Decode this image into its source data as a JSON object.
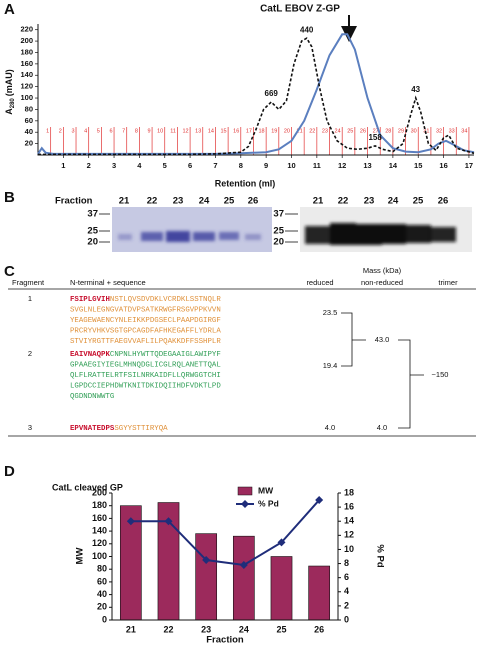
{
  "panels": [
    "A",
    "B",
    "C",
    "D"
  ],
  "chart_data": [
    {
      "type": "line",
      "title": "CatL EBOV Z-GP",
      "xlabel": "Retention (ml)",
      "ylabel": {
        "main": "A",
        "sub": "280",
        "unit": "(mAU)"
      },
      "xlim": [
        0,
        17.2
      ],
      "ylim": [
        0,
        230
      ],
      "xticks": [
        1,
        2,
        3,
        4,
        5,
        6,
        7,
        8,
        9,
        10,
        11,
        12,
        13,
        14,
        15,
        16,
        17
      ],
      "yticks": [
        20,
        40,
        60,
        80,
        100,
        120,
        140,
        160,
        180,
        200,
        220
      ],
      "series": [
        {
          "color": "#5b7fbf",
          "style": "solid",
          "x": [
            0,
            0.15,
            0.3,
            0.6,
            1,
            2,
            3,
            4,
            5,
            6,
            7,
            8,
            9,
            9.5,
            10,
            10.5,
            11,
            11.5,
            12,
            12.2,
            12.5,
            13,
            13.5,
            14,
            14.5,
            15,
            15.5,
            15.8,
            16.1,
            16.4,
            16.8,
            17.2
          ],
          "values": [
            2,
            12,
            4,
            2,
            2,
            2,
            2,
            2,
            2,
            2,
            2,
            3,
            5,
            10,
            25,
            60,
            115,
            175,
            212,
            212,
            185,
            100,
            35,
            12,
            6,
            5,
            10,
            20,
            25,
            18,
            8,
            5
          ]
        },
        {
          "color": "#111111",
          "style": "dashed",
          "x": [
            0,
            1,
            2,
            3,
            4,
            5,
            6,
            7,
            8,
            8.3,
            8.6,
            8.9,
            9.2,
            9.5,
            9.8,
            10.1,
            10.4,
            10.6,
            10.8,
            11.1,
            11.4,
            11.8,
            12.2,
            12.6,
            13,
            13.3,
            13.6,
            14,
            14.4,
            14.7,
            14.9,
            15.1,
            15.4,
            15.7,
            16,
            16.2,
            16.5,
            17.2
          ],
          "values": [
            1,
            1,
            1,
            1,
            1,
            1,
            1,
            2,
            5,
            15,
            45,
            80,
            93,
            80,
            95,
            160,
            200,
            205,
            190,
            120,
            60,
            25,
            12,
            10,
            12,
            16,
            10,
            6,
            20,
            70,
            100,
            75,
            20,
            8,
            30,
            35,
            12,
            3
          ]
        }
      ],
      "annotations": [
        {
          "text": "669",
          "x": 9.2,
          "y": 93
        },
        {
          "text": "440",
          "x": 10.6,
          "y": 205
        },
        {
          "text": "158",
          "x": 13.3,
          "y": 16
        },
        {
          "text": "43",
          "x": 14.9,
          "y": 100
        }
      ],
      "fractions": [
        1,
        2,
        3,
        4,
        5,
        6,
        7,
        8,
        9,
        10,
        11,
        12,
        13,
        14,
        15,
        16,
        17,
        18,
        19,
        20,
        21,
        22,
        23,
        24,
        25,
        26,
        27,
        28,
        29,
        30,
        31,
        32,
        33,
        34
      ],
      "fraction_x": [
        0.5,
        1,
        1.5,
        2,
        2.5,
        3,
        3.5,
        4,
        4.5,
        5,
        5.5,
        6,
        6.5,
        7,
        7.5,
        8,
        8.5,
        9,
        9.5,
        10,
        10.5,
        11,
        11.5,
        12,
        12.5,
        13,
        13.5,
        14,
        14.5,
        15,
        15.5,
        16,
        16.5,
        17
      ],
      "fraction_color": "#e03030"
    },
    {
      "type": "bar-line",
      "title": "CatL cleaved GP",
      "xlabel": "Fraction",
      "ylabel": "MW",
      "y2label": "% Pd",
      "categories": [
        "21",
        "22",
        "23",
        "24",
        "25",
        "26"
      ],
      "ylim": [
        0,
        200
      ],
      "yticks": [
        0,
        20,
        40,
        60,
        80,
        100,
        120,
        140,
        160,
        180,
        200
      ],
      "y2lim": [
        0,
        18
      ],
      "y2ticks": [
        0,
        2,
        4,
        6,
        8,
        10,
        12,
        14,
        16,
        18
      ],
      "series": [
        {
          "name": "MW",
          "color": "#9c2a5c",
          "values": [
            180,
            185,
            136,
            132,
            100,
            85
          ]
        },
        {
          "name": "% Pd",
          "color": "#1f2d7a",
          "axis": "y2",
          "values": [
            14,
            14,
            8.5,
            7.8,
            11,
            17
          ]
        }
      ]
    }
  ],
  "gels": {
    "label": "Fraction",
    "lanes": [
      "21",
      "22",
      "23",
      "24",
      "25",
      "26"
    ],
    "markers": [
      "37",
      "25",
      "20"
    ]
  },
  "table": {
    "headers": {
      "fragment": "Fragment",
      "sequence": "N-terminal + sequence",
      "mass": "Mass (kDa)",
      "reduced": "reduced",
      "nonreduced": "non-reduced",
      "trimer": "trimer"
    },
    "rows": [
      {
        "fragment": "1",
        "nterm": "FSIPLGVIH",
        "color": "#e0913a",
        "lines": [
          "NSTLQVSDVDKLVCRDKLSSTNQLR",
          "SVGLNLEGNGVATDVPSATKRWGFRSGVPPKVVN",
          "YEAGEWAENCYNLEIKKPDGSECLPAAPDGIRGF",
          "PRCRYVHKVSGTGPCAGDFAFHKEGAFFLYDRLA",
          "STVIYRGTTFAEGVVAFLILPQAKKDFFSSHPLR"
        ],
        "reduced": "23.5"
      },
      {
        "fragment": "2",
        "nterm": "EAIVNAQPK",
        "color": "#2f9e55",
        "lines": [
          "CNPNLHYWTTQDEGAAIGLAWIPYF",
          "GPAAEGIYIEGLMHNQDGLICGLRQLANETTQAL",
          "QLFLRATTELRTFSILNRKAIDFLLQRWGGTCHI",
          "LGPDCCIEPHDWTKNITDKIDQIIHDFVDKTLPD",
          "QGDNDNWWTG"
        ],
        "reduced": "19.4"
      },
      {
        "fragment": "3",
        "nterm": "EPVNATEDPS",
        "color": "#e0913a",
        "lines": [
          "SGYYSTTIRYQA"
        ],
        "reduced": "4.0"
      }
    ],
    "nonreduced": [
      "43.0",
      "4.0"
    ],
    "trimer": "~150"
  }
}
